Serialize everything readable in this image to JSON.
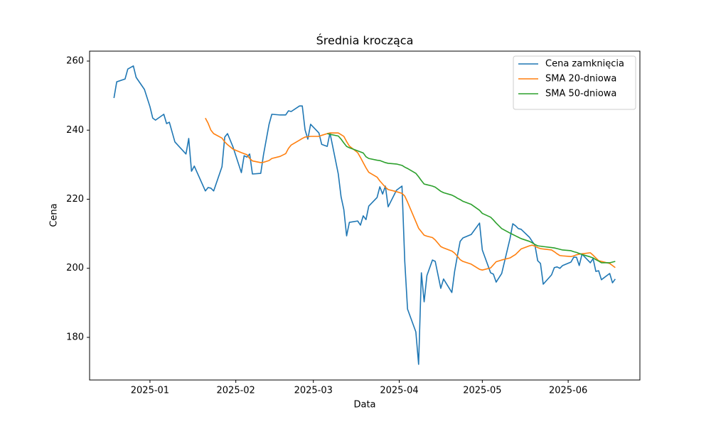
{
  "chart_data": {
    "type": "line",
    "title": "Średnia krocząca",
    "x_label": "Data",
    "y_label": "Cena",
    "x": [
      -13,
      -12,
      -9,
      -8,
      -6,
      -5,
      -2,
      0,
      1,
      2,
      5,
      6,
      7,
      9,
      13,
      14,
      15,
      16,
      20,
      21,
      22,
      23,
      26,
      27,
      28,
      30,
      33,
      34,
      35,
      36,
      37,
      40,
      41,
      43,
      44,
      47,
      49,
      50,
      51,
      54,
      55,
      56,
      57,
      58,
      61,
      62,
      64,
      65,
      68,
      69,
      70,
      71,
      72,
      75,
      76,
      77,
      78,
      79,
      82,
      83,
      84,
      85,
      86,
      89,
      91,
      92,
      93,
      96,
      97,
      98,
      99,
      100,
      102,
      103,
      105,
      106,
      109,
      110,
      111,
      112,
      113,
      116,
      119,
      120,
      123,
      124,
      125,
      127,
      130,
      131,
      132,
      133,
      134,
      137,
      138,
      139,
      140,
      141,
      142,
      145,
      146,
      147,
      148,
      149,
      152,
      153,
      154,
      155,
      156,
      159,
      160,
      161,
      162,
      163,
      166,
      167,
      168
    ],
    "series": [
      {
        "name": "Cena zamknięcia",
        "color": "#1f77b4",
        "values": [
          249.3,
          254.0,
          254.8,
          257.7,
          258.6,
          255.3,
          251.8,
          246.8,
          243.5,
          242.9,
          244.6,
          241.9,
          242.3,
          236.6,
          233.1,
          237.6,
          228.1,
          229.6,
          222.4,
          223.4,
          223.2,
          222.4,
          229.4,
          238.0,
          239.0,
          235.1,
          227.7,
          232.6,
          232.2,
          233.1,
          227.3,
          227.5,
          232.9,
          241.7,
          244.6,
          244.4,
          244.4,
          245.6,
          245.4,
          247.0,
          247.0,
          240.1,
          237.4,
          241.7,
          239.2,
          235.9,
          235.3,
          239.2,
          227.3,
          220.7,
          217.0,
          209.4,
          213.3,
          213.7,
          212.5,
          215.2,
          214.1,
          218.0,
          220.5,
          223.6,
          221.5,
          223.8,
          217.8,
          222.6,
          223.8,
          202.0,
          188.2,
          181.6,
          172.2,
          198.7,
          190.3,
          197.9,
          202.4,
          202.0,
          194.2,
          196.9,
          193.0,
          199.1,
          203.6,
          207.8,
          208.8,
          209.8,
          213.1,
          205.3,
          198.7,
          198.3,
          196.0,
          198.5,
          208.6,
          212.9,
          212.3,
          211.5,
          211.3,
          209.0,
          207.8,
          206.7,
          202.2,
          201.4,
          195.4,
          198.1,
          200.2,
          200.4,
          200.0,
          200.8,
          201.8,
          203.2,
          203.2,
          200.8,
          204.1,
          201.6,
          202.8,
          199.1,
          199.3,
          196.7,
          198.5,
          195.8,
          196.9
        ]
      },
      {
        "name": "SMA 20-dniowa",
        "color": "#ff7f0e",
        "values": [
          null,
          null,
          null,
          null,
          null,
          null,
          null,
          null,
          null,
          null,
          null,
          null,
          null,
          null,
          null,
          null,
          null,
          null,
          243.5,
          242.0,
          240.0,
          239.0,
          237.7,
          236.6,
          235.8,
          234.5,
          233.5,
          233.2,
          232.9,
          231.8,
          231.1,
          230.6,
          230.7,
          231.2,
          231.8,
          232.4,
          233.2,
          234.7,
          235.7,
          237.1,
          237.6,
          238.0,
          238.1,
          238.2,
          238.2,
          238.5,
          239.0,
          239.2,
          239.2,
          238.7,
          238.2,
          236.7,
          235.4,
          233.5,
          232.1,
          230.6,
          229.1,
          227.8,
          226.4,
          225.3,
          224.4,
          223.5,
          222.8,
          222.2,
          221.7,
          220.9,
          219.2,
          213.5,
          211.6,
          210.6,
          209.6,
          209.3,
          208.9,
          208.2,
          206.3,
          205.9,
          205.0,
          204.4,
          203.5,
          202.5,
          202.0,
          201.2,
          199.7,
          199.5,
          200.1,
          201.0,
          201.9,
          202.4,
          203.0,
          203.5,
          204.0,
          204.8,
          205.6,
          206.5,
          206.7,
          206.4,
          206.0,
          205.7,
          205.6,
          205.3,
          204.8,
          204.2,
          203.7,
          203.6,
          203.4,
          203.6,
          203.9,
          204.1,
          204.2,
          204.5,
          203.8,
          203.0,
          202.2,
          202.0,
          201.4,
          200.8,
          200.2
        ]
      },
      {
        "name": "SMA 50-dniowa",
        "color": "#2ca02c",
        "values": [
          null,
          null,
          null,
          null,
          null,
          null,
          null,
          null,
          null,
          null,
          null,
          null,
          null,
          null,
          null,
          null,
          null,
          null,
          null,
          null,
          null,
          null,
          null,
          null,
          null,
          null,
          null,
          null,
          null,
          null,
          null,
          null,
          null,
          null,
          null,
          null,
          null,
          null,
          null,
          null,
          null,
          null,
          null,
          null,
          null,
          null,
          239.0,
          238.8,
          238.3,
          237.4,
          236.3,
          235.3,
          234.9,
          234.0,
          233.7,
          233.4,
          232.3,
          231.8,
          231.3,
          231.2,
          230.9,
          230.6,
          230.4,
          230.2,
          229.8,
          229.3,
          228.9,
          227.5,
          226.5,
          225.4,
          224.4,
          224.2,
          223.8,
          223.5,
          222.3,
          221.9,
          221.2,
          220.8,
          220.3,
          219.9,
          219.4,
          218.5,
          216.8,
          215.9,
          214.8,
          214.0,
          213.1,
          211.5,
          210.2,
          209.8,
          209.4,
          209.0,
          208.6,
          207.8,
          207.4,
          206.9,
          206.5,
          206.4,
          206.3,
          206.0,
          205.9,
          205.7,
          205.5,
          205.3,
          205.1,
          204.8,
          204.6,
          204.3,
          204.0,
          203.3,
          203.0,
          202.5,
          202.1,
          201.6,
          201.6,
          201.8,
          202.0
        ]
      }
    ],
    "xlim": [
      -21.8,
      176.9
    ],
    "ylim": [
      167.66,
      262.88
    ],
    "xticks": [
      {
        "value": 0,
        "label": "2025-01"
      },
      {
        "value": 31,
        "label": "2025-02"
      },
      {
        "value": 59,
        "label": "2025-03"
      },
      {
        "value": 90,
        "label": "2025-04"
      },
      {
        "value": 120,
        "label": "2025-05"
      },
      {
        "value": 151,
        "label": "2025-06"
      }
    ],
    "yticks": [
      180,
      200,
      220,
      240,
      260
    ],
    "legend": "upper right",
    "grid": false
  }
}
